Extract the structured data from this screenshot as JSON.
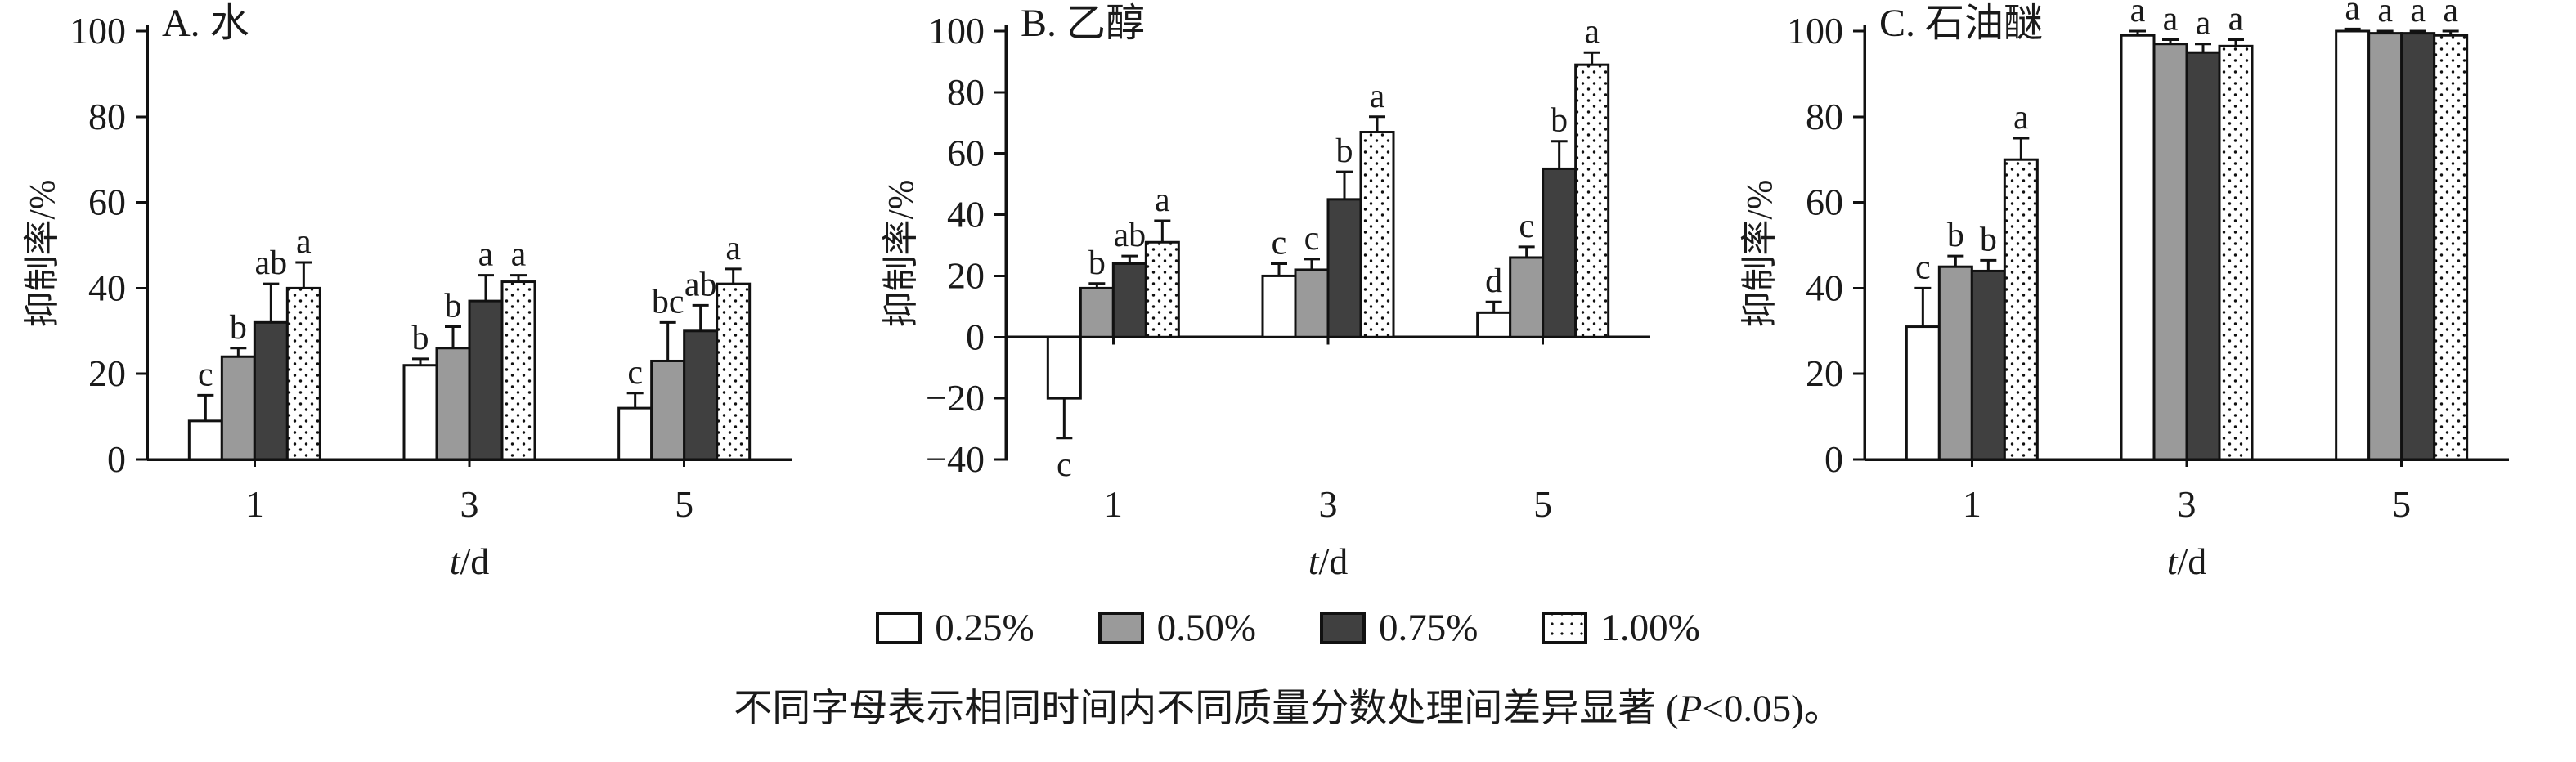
{
  "figure_caption": {
    "before": "不同字母表示相同时间内不同质量分数处理间差异显著 (",
    "p_italic": "P",
    "after": "<0.05)。"
  },
  "legend": {
    "items": [
      {
        "label": "0.25%",
        "fill": "#ffffff"
      },
      {
        "label": "0.50%",
        "fill": "#9a9a9a"
      },
      {
        "label": "0.75%",
        "fill": "#404040"
      },
      {
        "label": "1.00%",
        "fill": "dots"
      }
    ]
  },
  "axis": {
    "xlabel_italic": "t",
    "xlabel_rest": "/d",
    "ylabel": "抑制率/%"
  },
  "chart_data": [
    {
      "type": "bar",
      "title": "A. 水",
      "categories": [
        "1",
        "3",
        "5"
      ],
      "xlabel": "t/d",
      "ylabel": "抑制率/%",
      "ylim": [
        0,
        100
      ],
      "ytick": 20,
      "grid": false,
      "legend_position": "shared-bottom",
      "series": [
        {
          "name": "0.25%",
          "values": [
            9,
            22,
            12
          ],
          "errors": [
            6,
            1.5,
            3.5
          ],
          "letters": [
            "c",
            "b",
            "c"
          ]
        },
        {
          "name": "0.50%",
          "values": [
            24,
            26,
            23
          ],
          "errors": [
            2,
            5,
            9
          ],
          "letters": [
            "b",
            "b",
            "bc"
          ]
        },
        {
          "name": "0.75%",
          "values": [
            32,
            37,
            30
          ],
          "errors": [
            9,
            6,
            6
          ],
          "letters": [
            "ab",
            "a",
            "ab"
          ]
        },
        {
          "name": "1.00%",
          "values": [
            40,
            41.5,
            41
          ],
          "errors": [
            6,
            1.5,
            3.5
          ],
          "letters": [
            "a",
            "a",
            "a"
          ]
        }
      ]
    },
    {
      "type": "bar",
      "title": "B. 乙醇",
      "categories": [
        "1",
        "3",
        "5"
      ],
      "xlabel": "t/d",
      "ylabel": "抑制率/%",
      "ylim": [
        -40,
        100
      ],
      "ytick": 20,
      "grid": false,
      "legend_position": "shared-bottom",
      "series": [
        {
          "name": "0.25%",
          "values": [
            -20,
            20,
            8
          ],
          "errors": [
            13,
            4,
            3.5
          ],
          "letters": [
            "c",
            "c",
            "d"
          ]
        },
        {
          "name": "0.50%",
          "values": [
            16,
            22,
            26
          ],
          "errors": [
            1.5,
            3.5,
            3.5
          ],
          "letters": [
            "b",
            "c",
            "c"
          ]
        },
        {
          "name": "0.75%",
          "values": [
            24,
            45,
            55
          ],
          "errors": [
            2.5,
            9,
            9
          ],
          "letters": [
            "ab",
            "b",
            "b"
          ]
        },
        {
          "name": "1.00%",
          "values": [
            31,
            67,
            89
          ],
          "errors": [
            7,
            5,
            4
          ],
          "letters": [
            "a",
            "a",
            "a"
          ]
        }
      ]
    },
    {
      "type": "bar",
      "title": "C. 石油醚",
      "categories": [
        "1",
        "3",
        "5"
      ],
      "xlabel": "t/d",
      "ylabel": "抑制率/%",
      "ylim": [
        0,
        100
      ],
      "ytick": 20,
      "grid": false,
      "legend_position": "shared-bottom",
      "series": [
        {
          "name": "0.25%",
          "values": [
            31,
            99,
            100
          ],
          "errors": [
            9,
            1,
            0.5
          ],
          "letters": [
            "c",
            "a",
            "a"
          ]
        },
        {
          "name": "0.50%",
          "values": [
            45,
            97,
            99.5
          ],
          "errors": [
            2.5,
            1,
            0.5
          ],
          "letters": [
            "b",
            "a",
            "a"
          ]
        },
        {
          "name": "0.75%",
          "values": [
            44,
            95,
            99.5
          ],
          "errors": [
            2.5,
            2,
            0.5
          ],
          "letters": [
            "b",
            "a",
            "a"
          ]
        },
        {
          "name": "1.00%",
          "values": [
            70,
            96.5,
            99
          ],
          "errors": [
            5,
            1.5,
            1
          ],
          "letters": [
            "a",
            "a",
            "a"
          ]
        }
      ]
    }
  ]
}
